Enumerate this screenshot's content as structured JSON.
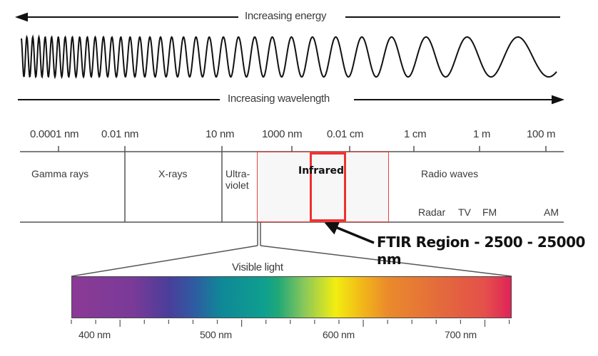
{
  "top": {
    "energy_label": "Increasing energy",
    "wavelength_label": "Increasing wavelength"
  },
  "scale_ticks": [
    "0.0001 nm",
    "0.01 nm",
    "10 nm",
    "1000 nm",
    "0.01 cm",
    "1 cm",
    "1 m",
    "100 m"
  ],
  "bands": {
    "gamma": "Gamma rays",
    "xrays": "X-rays",
    "uv_line1": "Ultra-",
    "uv_line2": "violet",
    "infrared": "Infrared",
    "radio": "Radio waves",
    "radar": "Radar",
    "tv": "TV",
    "fm": "FM",
    "am": "AM"
  },
  "annotation": {
    "ftir": "FTIR Region - 2500 - 25000 nm",
    "highlight_color": "#f03030"
  },
  "visible": {
    "title": "Visible light",
    "ticks": [
      "400 nm",
      "500 nm",
      "600 nm",
      "700 nm"
    ]
  }
}
